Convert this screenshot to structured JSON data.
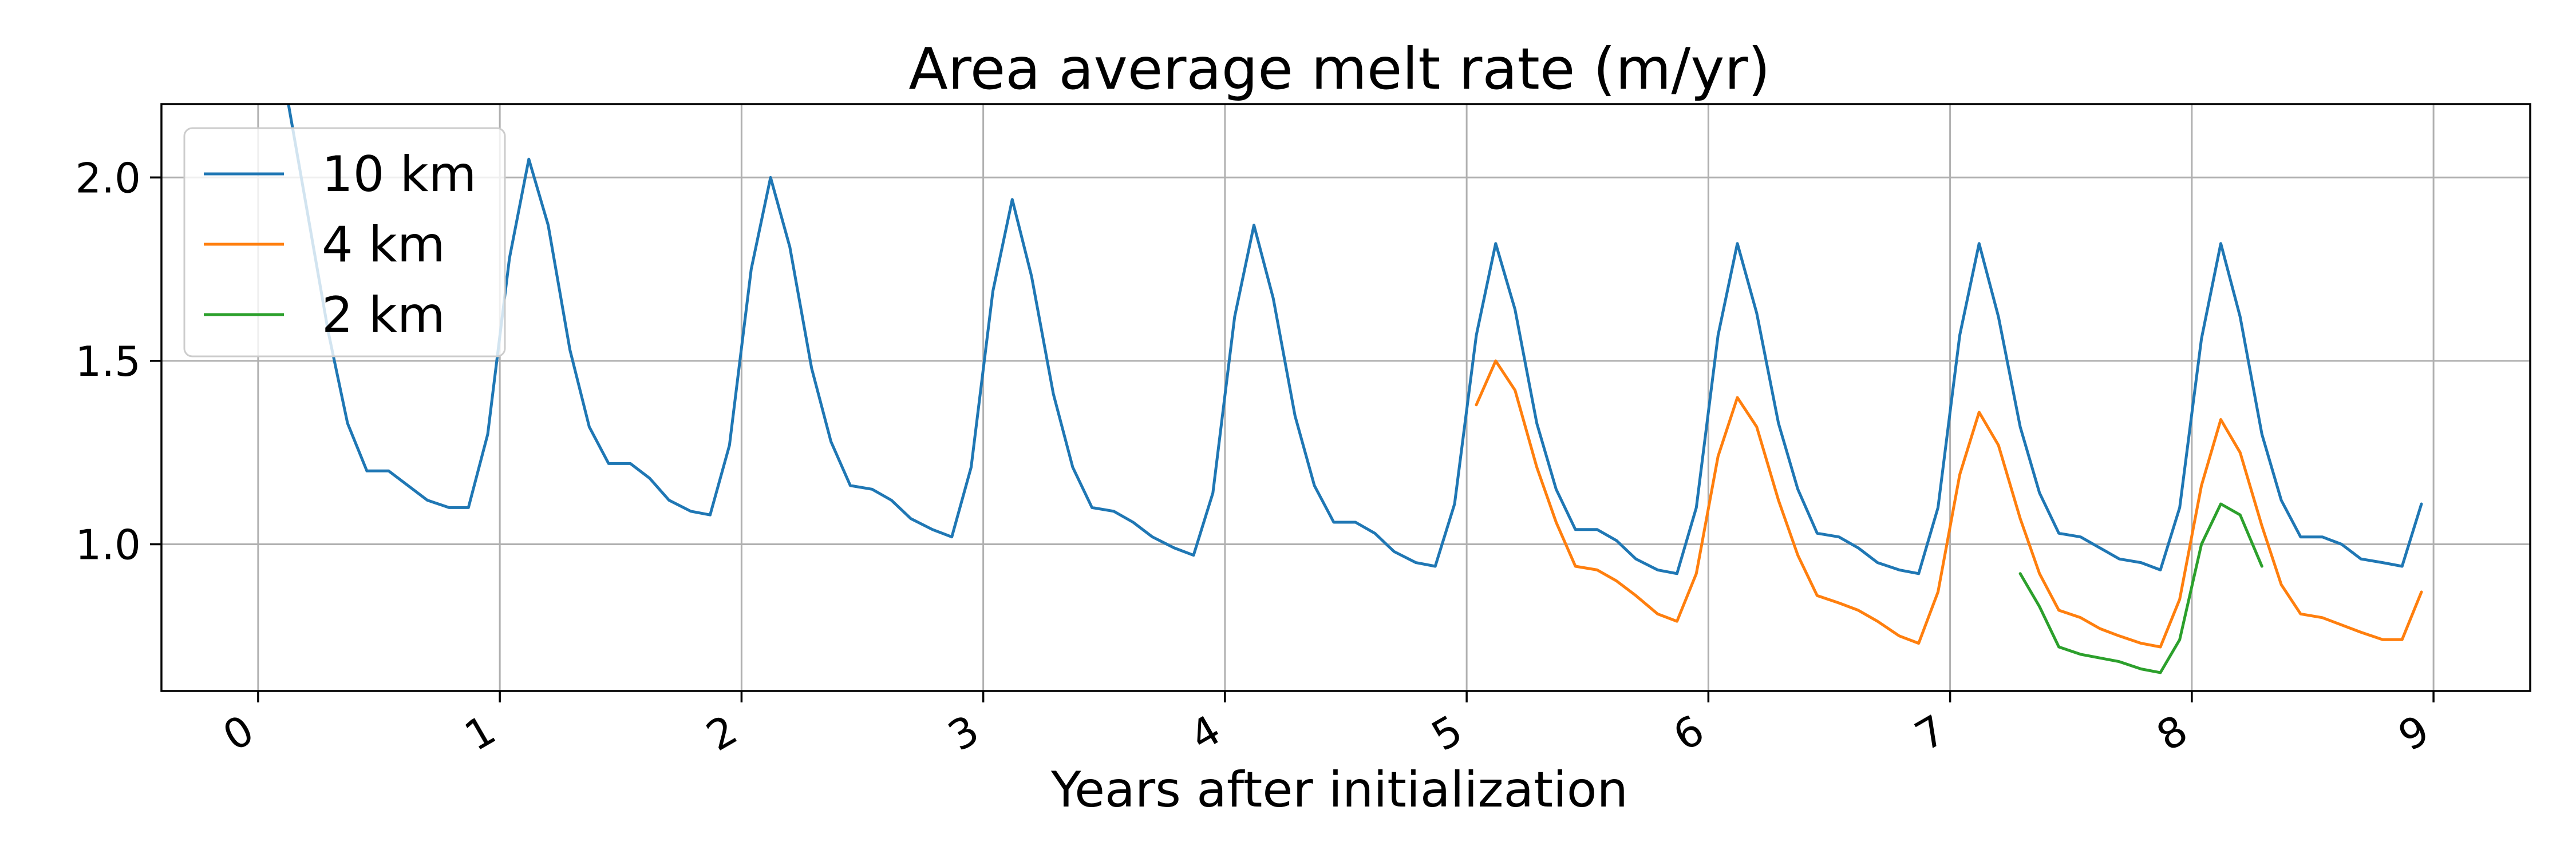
{
  "chart_data": {
    "type": "line",
    "title": "Area average melt rate (m/yr)",
    "xlabel": "Years after initialization",
    "ylabel": "",
    "xlim": [
      -0.4,
      9.4
    ],
    "ylim": [
      0.6,
      2.2
    ],
    "xticks": [
      0,
      1,
      2,
      3,
      4,
      5,
      6,
      7,
      8,
      9
    ],
    "xtick_labels": [
      "0",
      "1",
      "2",
      "3",
      "4",
      "5",
      "6",
      "7",
      "8",
      "9"
    ],
    "yticks": [
      1.0,
      1.5,
      2.0
    ],
    "ytick_labels": [
      "1.0",
      "1.5",
      "2.0"
    ],
    "grid": true,
    "legend_position": "top-left",
    "series": [
      {
        "name": "10 km",
        "color": "#1f77b4",
        "x": [
          0.12,
          0.2,
          0.29,
          0.37,
          0.45,
          0.54,
          0.62,
          0.7,
          0.79,
          0.87,
          0.95,
          1.04,
          1.12,
          1.2,
          1.29,
          1.37,
          1.45,
          1.54,
          1.62,
          1.7,
          1.79,
          1.87,
          1.95,
          2.04,
          2.12,
          2.2,
          2.29,
          2.37,
          2.45,
          2.54,
          2.62,
          2.7,
          2.79,
          2.87,
          2.95,
          3.04,
          3.12,
          3.2,
          3.29,
          3.37,
          3.45,
          3.54,
          3.62,
          3.7,
          3.79,
          3.87,
          3.95,
          4.04,
          4.12,
          4.2,
          4.29,
          4.37,
          4.45,
          4.54,
          4.62,
          4.7,
          4.79,
          4.87,
          4.95,
          5.04,
          5.12,
          5.2,
          5.29,
          5.37,
          5.45,
          5.54,
          5.62,
          5.7,
          5.79,
          5.87,
          5.95,
          6.04,
          6.12,
          6.2,
          6.29,
          6.37,
          6.45,
          6.54,
          6.62,
          6.7,
          6.79,
          6.87,
          6.95,
          7.04,
          7.12,
          7.2,
          7.29,
          7.37,
          7.45,
          7.54,
          7.62,
          7.7,
          7.79,
          7.87,
          7.95,
          8.04,
          8.12,
          8.2,
          8.29,
          8.37,
          8.45,
          8.54,
          8.62,
          8.7,
          8.79,
          8.87,
          8.95
        ],
        "y": [
          2.22,
          1.92,
          1.58,
          1.33,
          1.2,
          1.2,
          1.16,
          1.12,
          1.1,
          1.1,
          1.3,
          1.78,
          2.05,
          1.87,
          1.53,
          1.32,
          1.22,
          1.22,
          1.18,
          1.12,
          1.09,
          1.08,
          1.27,
          1.75,
          2.0,
          1.81,
          1.48,
          1.28,
          1.16,
          1.15,
          1.12,
          1.07,
          1.04,
          1.02,
          1.21,
          1.69,
          1.94,
          1.73,
          1.41,
          1.21,
          1.1,
          1.09,
          1.06,
          1.02,
          0.99,
          0.97,
          1.14,
          1.62,
          1.87,
          1.67,
          1.35,
          1.16,
          1.06,
          1.06,
          1.03,
          0.98,
          0.95,
          0.94,
          1.11,
          1.57,
          1.82,
          1.64,
          1.33,
          1.15,
          1.04,
          1.04,
          1.01,
          0.96,
          0.93,
          0.92,
          1.1,
          1.57,
          1.82,
          1.63,
          1.33,
          1.15,
          1.03,
          1.02,
          0.99,
          0.95,
          0.93,
          0.92,
          1.1,
          1.57,
          1.82,
          1.62,
          1.32,
          1.14,
          1.03,
          1.02,
          0.99,
          0.96,
          0.95,
          0.93,
          1.1,
          1.56,
          1.82,
          1.62,
          1.3,
          1.12,
          1.02,
          1.02,
          1.0,
          0.96,
          0.95,
          0.94,
          1.11
        ]
      },
      {
        "name": "4 km",
        "color": "#ff7f0e",
        "x": [
          5.04,
          5.12,
          5.2,
          5.29,
          5.37,
          5.45,
          5.54,
          5.62,
          5.7,
          5.79,
          5.87,
          5.95,
          6.04,
          6.12,
          6.2,
          6.29,
          6.37,
          6.45,
          6.54,
          6.62,
          6.7,
          6.79,
          6.87,
          6.95,
          7.04,
          7.12,
          7.2,
          7.29,
          7.37,
          7.45,
          7.54,
          7.62,
          7.7,
          7.79,
          7.87,
          7.95,
          8.04,
          8.12,
          8.2,
          8.29,
          8.37,
          8.45,
          8.54,
          8.62,
          8.7,
          8.79,
          8.87,
          8.95
        ],
        "y": [
          1.38,
          1.5,
          1.42,
          1.21,
          1.06,
          0.94,
          0.93,
          0.9,
          0.86,
          0.81,
          0.79,
          0.92,
          1.24,
          1.4,
          1.32,
          1.12,
          0.97,
          0.86,
          0.84,
          0.82,
          0.79,
          0.75,
          0.73,
          0.87,
          1.19,
          1.36,
          1.27,
          1.07,
          0.92,
          0.82,
          0.8,
          0.77,
          0.75,
          0.73,
          0.72,
          0.85,
          1.16,
          1.34,
          1.25,
          1.05,
          0.89,
          0.81,
          0.8,
          0.78,
          0.76,
          0.74,
          0.74,
          0.87
        ]
      },
      {
        "name": "2 km",
        "color": "#2ca02c",
        "x": [
          7.29,
          7.37,
          7.45,
          7.54,
          7.62,
          7.7,
          7.79,
          7.87,
          7.95,
          8.04,
          8.12,
          8.2,
          8.29
        ],
        "y": [
          0.92,
          0.83,
          0.72,
          0.7,
          0.69,
          0.68,
          0.66,
          0.65,
          0.74,
          1.0,
          1.11,
          1.08,
          0.94
        ]
      }
    ]
  }
}
